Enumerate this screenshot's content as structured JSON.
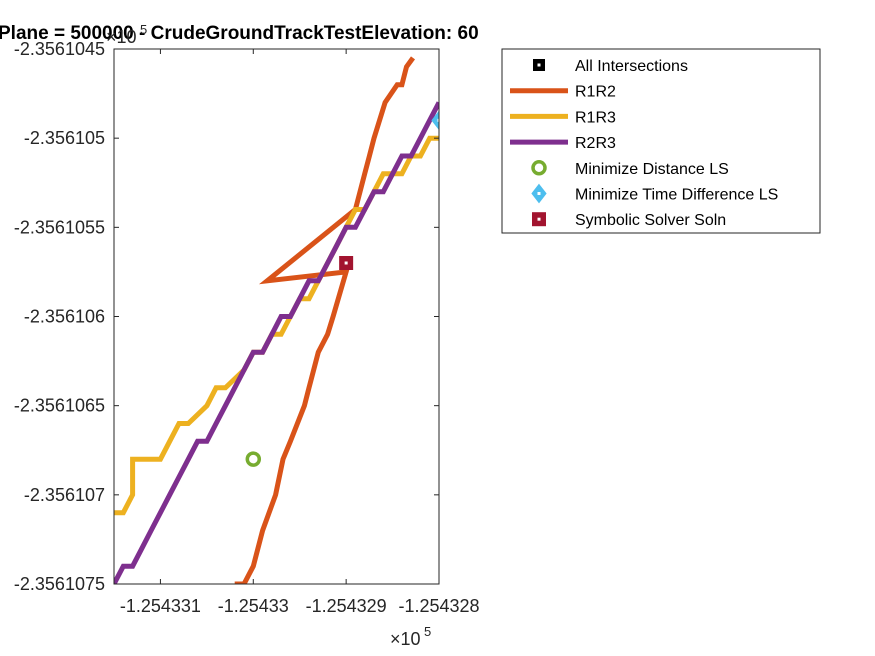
{
  "chart_data": {
    "type": "line",
    "title": "Plane = 500000 - CrudeGroundTrackTestElevation: 60",
    "xlabel": "",
    "ylabel": "",
    "x_exponent_label": "×10",
    "x_exponent_power": "5",
    "y_exponent_label": "×10",
    "y_exponent_power": "5",
    "xlim": [
      -1.2543315,
      -1.254328
    ],
    "ylim": [
      -2.3561075,
      -2.3561045
    ],
    "x_ticks": [
      {
        "value": -1.254331,
        "label": "-1.254331"
      },
      {
        "value": -1.25433,
        "label": "-1.25433"
      },
      {
        "value": -1.254329,
        "label": "-1.254329"
      },
      {
        "value": -1.254328,
        "label": "-1.254328"
      }
    ],
    "y_ticks": [
      {
        "value": -2.3561045,
        "label": "-2.3561045"
      },
      {
        "value": -2.356105,
        "label": "-2.356105"
      },
      {
        "value": -2.3561055,
        "label": "-2.3561055"
      },
      {
        "value": -2.356106,
        "label": "-2.356106"
      },
      {
        "value": -2.3561065,
        "label": "-2.3561065"
      },
      {
        "value": -2.356107,
        "label": "-2.356107"
      },
      {
        "value": -2.3561075,
        "label": "-2.3561075"
      }
    ],
    "grid": false,
    "legend_position": "top-right outside",
    "series": [
      {
        "name": "R1R2",
        "kind": "line",
        "color": "#D95319",
        "x": [
          -1.2543302,
          -1.2543301,
          -1.25433,
          -1.2543299,
          -1.25432976,
          -1.25432968,
          -1.2543296,
          -1.25432945,
          -1.2543294,
          -1.2543293,
          -1.2543292,
          -1.25432914,
          -1.254329,
          -1.25432985,
          -1.2543289,
          -1.2543288,
          -1.25432875,
          -1.2543287,
          -1.25432858,
          -1.25432845,
          -1.2543284,
          -1.25432835,
          -1.25432828
        ],
        "y": [
          -2.3561075,
          -2.3561075,
          -2.3561074,
          -2.3561072,
          -2.356107,
          -2.3561068,
          -2.3561067,
          -2.3561065,
          -2.3561064,
          -2.3561062,
          -2.3561061,
          -2.356106,
          -2.35610575,
          -2.3561058,
          -2.3561054,
          -2.3561052,
          -2.3561051,
          -2.356105,
          -2.3561048,
          -2.3561047,
          -2.3561047,
          -2.3561046,
          -2.35610455
        ]
      },
      {
        "name": "R1R3",
        "kind": "line",
        "color": "#EDB120",
        "x": [
          -1.2543315,
          -1.2543314,
          -1.2543313,
          -1.2543313,
          -1.2543311,
          -1.254331,
          -1.2543309,
          -1.2543308,
          -1.2543307,
          -1.2543307,
          -1.2543305,
          -1.2543304,
          -1.2543303,
          -1.2543303,
          -1.2543301,
          -1.25433,
          -1.2543299,
          -1.2543298,
          -1.2543297,
          -1.2543296,
          -1.2543295,
          -1.2543294,
          -1.2543293,
          -1.2543292,
          -1.2543291,
          -1.254329,
          -1.2543289,
          -1.2543288,
          -1.2543287,
          -1.2543286,
          -1.2543285,
          -1.2543284,
          -1.2543283,
          -1.2543282,
          -1.2543281,
          -1.254328
        ],
        "y": [
          -2.3561071,
          -2.3561071,
          -2.356107,
          -2.3561068,
          -2.3561068,
          -2.3561068,
          -2.3561067,
          -2.3561066,
          -2.3561066,
          -2.3561066,
          -2.3561065,
          -2.3561064,
          -2.3561064,
          -2.3561064,
          -2.3561063,
          -2.3561062,
          -2.3561062,
          -2.3561061,
          -2.3561061,
          -2.356106,
          -2.3561059,
          -2.3561059,
          -2.3561058,
          -2.3561057,
          -2.3561056,
          -2.3561055,
          -2.3561054,
          -2.3561054,
          -2.3561053,
          -2.3561052,
          -2.3561052,
          -2.3561052,
          -2.3561051,
          -2.3561051,
          -2.356105,
          -2.356105
        ]
      },
      {
        "name": "R2R3",
        "kind": "line",
        "color": "#7E2F8E",
        "x": [
          -1.2543315,
          -1.2543314,
          -1.2543313,
          -1.2543312,
          -1.2543311,
          -1.254331,
          -1.2543309,
          -1.2543308,
          -1.2543307,
          -1.2543306,
          -1.2543305,
          -1.2543304,
          -1.2543303,
          -1.2543302,
          -1.2543301,
          -1.25433,
          -1.2543299,
          -1.2543298,
          -1.2543297,
          -1.2543296,
          -1.2543295,
          -1.2543294,
          -1.2543293,
          -1.2543292,
          -1.2543291,
          -1.254329,
          -1.2543289,
          -1.2543288,
          -1.2543287,
          -1.2543286,
          -1.2543285,
          -1.2543284,
          -1.2543283,
          -1.2543282,
          -1.2543281,
          -1.254328
        ],
        "y": [
          -2.3561075,
          -2.3561074,
          -2.3561074,
          -2.3561073,
          -2.3561072,
          -2.3561071,
          -2.356107,
          -2.3561069,
          -2.3561068,
          -2.3561067,
          -2.3561067,
          -2.3561066,
          -2.3561065,
          -2.3561064,
          -2.3561063,
          -2.3561062,
          -2.3561062,
          -2.3561061,
          -2.356106,
          -2.356106,
          -2.3561059,
          -2.3561058,
          -2.3561058,
          -2.3561057,
          -2.3561056,
          -2.3561055,
          -2.3561055,
          -2.3561054,
          -2.3561053,
          -2.3561053,
          -2.3561052,
          -2.3561051,
          -2.3561051,
          -2.356105,
          -2.3561049,
          -2.3561048
        ]
      },
      {
        "name": "All Intersections",
        "kind": "marker",
        "marker": "square-dot",
        "color": "#000000",
        "x": [],
        "y": []
      },
      {
        "name": "Minimize Distance LS",
        "kind": "marker",
        "marker": "circle",
        "color": "#77AC30",
        "x": [
          -1.25433
        ],
        "y": [
          -2.3561068
        ]
      },
      {
        "name": "Minimize Time Difference LS",
        "kind": "marker",
        "marker": "diamond",
        "color": "#4DBEEE",
        "x": [
          -1.254328
        ],
        "y": [
          -2.3561049
        ]
      },
      {
        "name": "Symbolic Solver Soln",
        "kind": "marker",
        "marker": "square",
        "color": "#A2142F",
        "x": [
          -1.254329
        ],
        "y": [
          -2.3561057
        ]
      }
    ],
    "legend_order": [
      "All Intersections",
      "R1R2",
      "R1R3",
      "R2R3",
      "Minimize Distance LS",
      "Minimize Time Difference LS",
      "Symbolic Solver Soln"
    ]
  }
}
